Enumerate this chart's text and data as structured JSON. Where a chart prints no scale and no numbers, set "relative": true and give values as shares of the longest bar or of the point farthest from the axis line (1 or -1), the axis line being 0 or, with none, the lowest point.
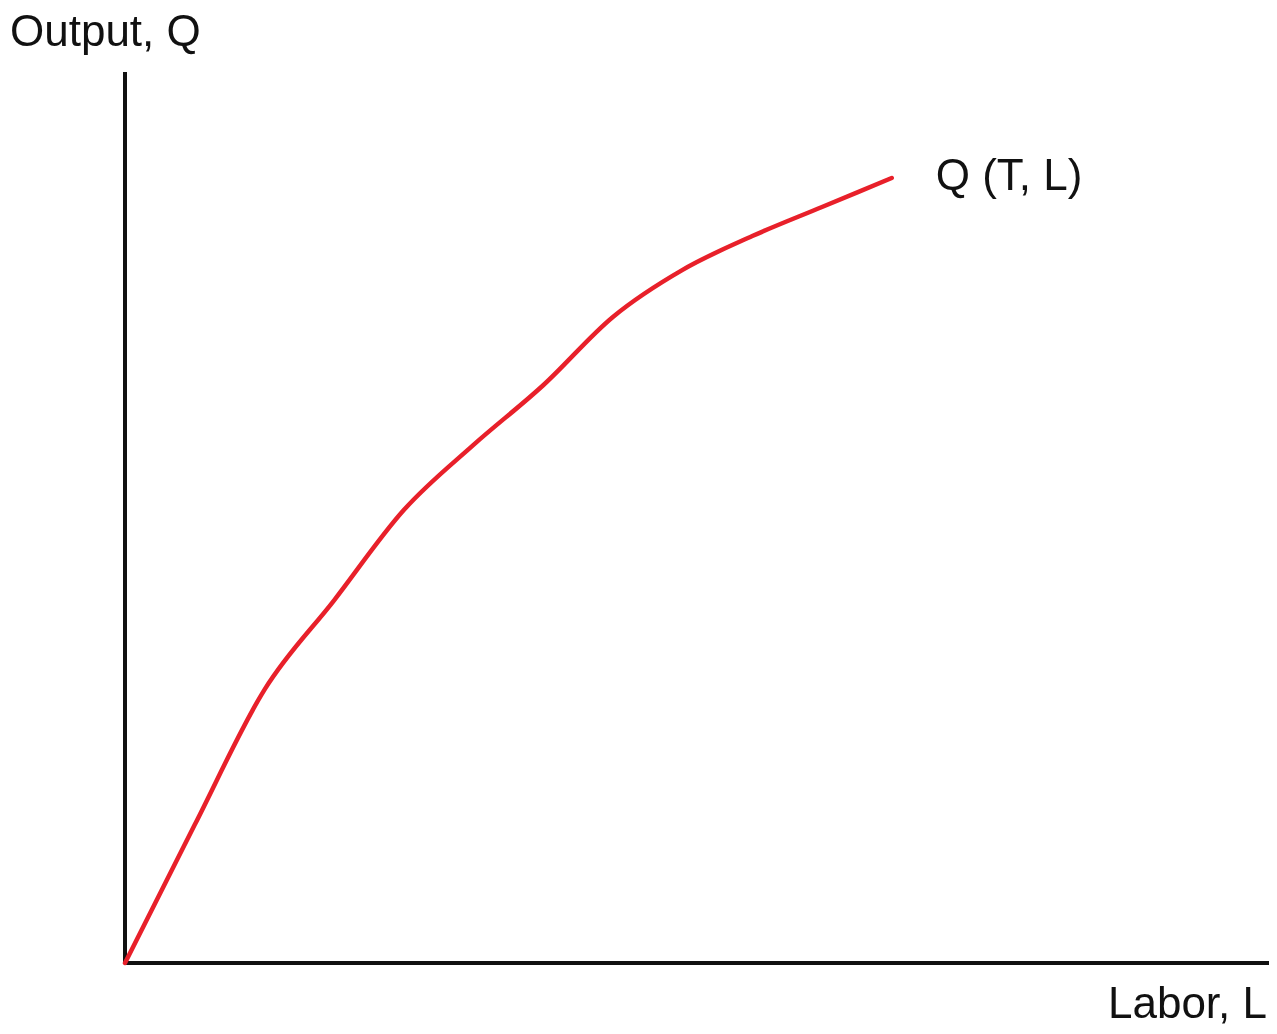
{
  "chart_data": {
    "type": "line",
    "xlabel": "Labor, L",
    "ylabel": "Output, Q",
    "relative": true,
    "tick_labels": false,
    "categories": [
      null,
      null,
      null,
      null,
      null,
      null,
      null,
      null,
      null,
      null,
      null,
      null,
      null,
      null,
      null,
      null,
      null
    ],
    "series": [
      {
        "name": "Q (T, L)",
        "color": "#e8202a",
        "values": [
          0,
          0.176,
          0.348,
          0.462,
          0.577,
          0.66,
          0.736,
          0.823,
          0.883,
          0.926,
          0.963,
          1.0,
          null,
          null,
          null,
          null,
          null
        ]
      }
    ]
  }
}
